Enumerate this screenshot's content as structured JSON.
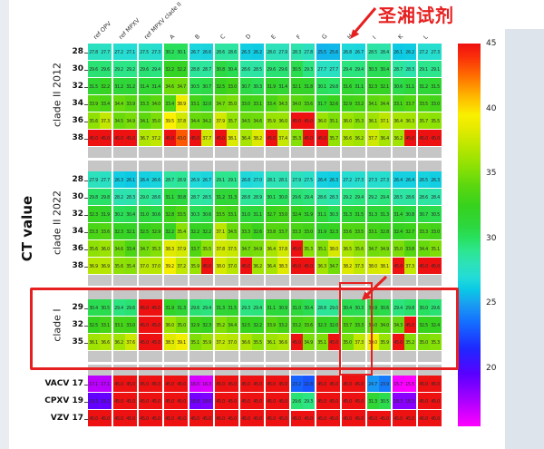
{
  "page": {
    "ylabel": "CT value",
    "accent_red": "#e62020",
    "gray_band_color": "#c6c6c6"
  },
  "annotation": {
    "reagent_label": "圣湘试剂",
    "highlight_column": "H",
    "highlight_section": "clade I"
  },
  "chart_data": {
    "type": "heatmap",
    "ylabel": "CT value",
    "columns": [
      "ref OPV",
      "ref MPXV",
      "ref MPXV clade II",
      "A",
      "B",
      "C",
      "D",
      "E",
      "F",
      "G",
      "H",
      "I",
      "K",
      "L"
    ],
    "replicates_per_column": 2,
    "colorbar": {
      "vmin": 15.5,
      "vmax": 45,
      "ticks": [
        45,
        40,
        35,
        30,
        25,
        20
      ],
      "position": "right"
    },
    "colormap_stops": [
      [
        15.5,
        "#ff00ff"
      ],
      [
        17.5,
        "#aa00ff"
      ],
      [
        19.5,
        "#5a00ff"
      ],
      [
        21.5,
        "#1e28ff"
      ],
      [
        23.5,
        "#146eff"
      ],
      [
        25.0,
        "#19a0f0"
      ],
      [
        26.0,
        "#0ac8e6"
      ],
      [
        27.0,
        "#23dcd7"
      ],
      [
        28.0,
        "#2de1b9"
      ],
      [
        29.0,
        "#2de691"
      ],
      [
        30.0,
        "#28e05f"
      ],
      [
        31.0,
        "#2dd73c"
      ],
      [
        32.5,
        "#37d21e"
      ],
      [
        34.0,
        "#5ad70f"
      ],
      [
        35.5,
        "#8ce105"
      ],
      [
        37.0,
        "#b9e600"
      ],
      [
        38.5,
        "#e6eb00"
      ],
      [
        39.5,
        "#faf000"
      ],
      [
        41.0,
        "#ffb400"
      ],
      [
        42.5,
        "#ff6e00"
      ],
      [
        44.0,
        "#fa2d0a"
      ],
      [
        45.0,
        "#ee1111"
      ]
    ],
    "sections": [
      {
        "label": "clade II 2012",
        "row_labels": [
          "28",
          "30",
          "32",
          "34",
          "36",
          "38"
        ],
        "rows": [
          [
            27.8,
            27.7,
            27.2,
            27.1,
            27.5,
            27.3,
            30.2,
            30.1,
            26.7,
            26.6,
            28.6,
            28.6,
            26.3,
            26.2,
            28.0,
            27.9,
            28.3,
            27.8,
            25.5,
            25.6,
            26.8,
            26.7,
            28.5,
            28.4,
            26.1,
            26.2,
            27.2,
            27.3
          ],
          [
            29.6,
            29.6,
            29.2,
            29.2,
            29.6,
            29.4,
            32.2,
            32.2,
            28.8,
            28.7,
            30.8,
            30.4,
            28.6,
            28.5,
            29.6,
            29.6,
            30.5,
            29.3,
            27.7,
            27.7,
            29.4,
            29.4,
            30.3,
            30.4,
            28.7,
            28.3,
            29.1,
            29.1
          ],
          [
            31.5,
            32.2,
            31.2,
            31.2,
            31.4,
            31.4,
            34.6,
            34.7,
            30.5,
            30.7,
            32.5,
            33.0,
            30.7,
            30.3,
            31.9,
            31.4,
            32.1,
            31.8,
            30.1,
            29.8,
            31.6,
            31.1,
            32.3,
            32.1,
            30.6,
            31.1,
            31.2,
            31.5
          ],
          [
            33.9,
            33.4,
            34.4,
            33.9,
            33.3,
            34.0,
            33.4,
            38.9,
            33.1,
            32.0,
            34.7,
            35.0,
            33.0,
            33.1,
            33.4,
            34.3,
            34.0,
            33.6,
            31.7,
            32.6,
            32.9,
            33.2,
            34.1,
            34.4,
            33.1,
            33.7,
            33.5,
            33.0
          ],
          [
            35.6,
            37.3,
            34.5,
            34.9,
            34.1,
            35.0,
            39.5,
            37.8,
            34.4,
            34.2,
            37.9,
            35.7,
            34.5,
            34.6,
            35.9,
            36.0,
            45.0,
            45.0,
            36.0,
            35.1,
            36.0,
            35.3,
            36.1,
            37.1,
            36.4,
            36.3,
            35.7,
            35.5
          ],
          [
            45.0,
            45.0,
            45.0,
            45.0,
            36.7,
            37.2,
            45.0,
            43.0,
            45.0,
            37.7,
            45.0,
            38.1,
            36.4,
            38.2,
            45.0,
            37.4,
            35.3,
            45.0,
            45.0,
            35.7,
            36.6,
            36.2,
            37.7,
            36.4,
            36.2,
            45.0,
            45.0,
            45.0
          ]
        ]
      },
      {
        "label": "clade II 2022",
        "row_labels": [
          "28",
          "30",
          "32",
          "34",
          "36",
          "38"
        ],
        "rows": [
          [
            27.9,
            27.7,
            26.3,
            26.1,
            26.4,
            26.6,
            28.7,
            28.9,
            26.9,
            26.7,
            29.1,
            29.1,
            26.8,
            27.0,
            28.1,
            28.1,
            27.9,
            27.5,
            26.4,
            26.3,
            27.2,
            27.3,
            27.3,
            27.3,
            26.4,
            26.4,
            26.5,
            26.3
          ],
          [
            29.8,
            29.8,
            28.2,
            28.3,
            29.0,
            28.6,
            31.1,
            30.8,
            28.7,
            28.5,
            31.2,
            31.3,
            28.8,
            28.9,
            30.1,
            30.0,
            29.6,
            29.4,
            28.6,
            28.3,
            29.2,
            29.4,
            29.2,
            29.4,
            28.5,
            28.6,
            28.6,
            28.4
          ],
          [
            32.3,
            31.9,
            30.2,
            30.4,
            31.0,
            30.6,
            32.8,
            33.5,
            30.3,
            30.6,
            33.5,
            33.1,
            31.0,
            31.1,
            32.7,
            33.0,
            32.4,
            31.9,
            31.1,
            30.3,
            31.3,
            31.5,
            31.3,
            31.3,
            31.4,
            30.8,
            30.7,
            30.5
          ],
          [
            33.3,
            33.6,
            32.3,
            32.1,
            32.5,
            32.9,
            32.2,
            35.4,
            32.2,
            32.2,
            37.1,
            34.5,
            33.3,
            32.6,
            33.8,
            33.7,
            33.3,
            33.0,
            31.9,
            32.3,
            33.6,
            33.5,
            33.1,
            32.8,
            32.4,
            32.7,
            33.3,
            33.0
          ],
          [
            35.6,
            36.0,
            34.6,
            33.4,
            34.7,
            35.3,
            38.3,
            37.9,
            33.7,
            35.5,
            37.8,
            37.5,
            34.7,
            34.9,
            36.4,
            37.8,
            45.0,
            35.3,
            35.1,
            38.0,
            36.5,
            35.6,
            34.7,
            34.9,
            35.0,
            33.8,
            34.4,
            35.1
          ],
          [
            36.9,
            36.9,
            35.6,
            35.4,
            37.0,
            37.0,
            39.2,
            37.2,
            35.9,
            45.0,
            38.0,
            37.0,
            45.0,
            36.2,
            36.4,
            38.3,
            45.0,
            45.0,
            36.3,
            34.7,
            38.2,
            37.3,
            38.0,
            38.1,
            45.0,
            37.3,
            45.0,
            45.0
          ]
        ]
      },
      {
        "label": "clade I",
        "row_labels": [
          "29",
          "32",
          "35"
        ],
        "rows": [
          [
            30.4,
            30.5,
            29.4,
            29.6,
            45.0,
            45.0,
            31.9,
            31.3,
            29.6,
            29.4,
            31.3,
            31.5,
            29.3,
            29.4,
            31.1,
            30.9,
            31.0,
            30.4,
            28.8,
            29.0,
            30.4,
            30.3,
            30.9,
            30.6,
            29.4,
            29.8,
            30.0,
            29.6
          ],
          [
            32.5,
            33.1,
            33.1,
            33.0,
            45.0,
            45.0,
            36.0,
            35.0,
            32.9,
            32.3,
            35.2,
            34.4,
            32.5,
            32.2,
            33.9,
            33.2,
            33.2,
            33.6,
            32.3,
            32.0,
            33.7,
            33.3,
            34.0,
            34.0,
            34.3,
            45.0,
            32.5,
            32.4
          ],
          [
            36.1,
            36.6,
            36.2,
            37.6,
            45.0,
            45.0,
            38.3,
            39.1,
            35.1,
            35.9,
            37.2,
            37.0,
            36.6,
            35.5,
            36.1,
            36.6,
            45.0,
            34.9,
            35.1,
            45.0,
            35.0,
            37.3,
            39.0,
            35.9,
            45.0,
            35.2,
            35.0,
            35.3
          ]
        ]
      },
      {
        "label": "",
        "row_labels": [
          "VACV 17",
          "CPXV 19",
          "VZV 17"
        ],
        "rows": [
          [
            17.1,
            17.1,
            45.0,
            45.0,
            45.0,
            45.0,
            45.0,
            45.0,
            16.5,
            16.3,
            45.0,
            45.0,
            45.0,
            45.0,
            45.0,
            45.0,
            23.2,
            22.8,
            45.0,
            45.0,
            45.0,
            45.0,
            24.7,
            23.9,
            15.7,
            15.5,
            45.0,
            45.0
          ],
          [
            19.3,
            19.2,
            45.0,
            45.0,
            45.0,
            45.0,
            45.0,
            45.0,
            18.8,
            18.6,
            45.0,
            45.0,
            45.0,
            45.0,
            45.0,
            45.0,
            29.6,
            29.3,
            45.0,
            45.0,
            45.0,
            45.0,
            31.3,
            30.5,
            18.3,
            18.3,
            45.0,
            45.0
          ],
          [
            45.0,
            45.0,
            45.0,
            45.0,
            45.0,
            45.0,
            45.0,
            45.0,
            45.0,
            45.0,
            45.0,
            45.0,
            45.0,
            45.0,
            45.0,
            45.0,
            45.0,
            45.0,
            45.0,
            45.0,
            45.0,
            45.0,
            45.0,
            45.0,
            45.0,
            45.0,
            45.0,
            45.0
          ]
        ]
      }
    ],
    "bottom_highlight_columns": [
      "F",
      "I"
    ]
  }
}
